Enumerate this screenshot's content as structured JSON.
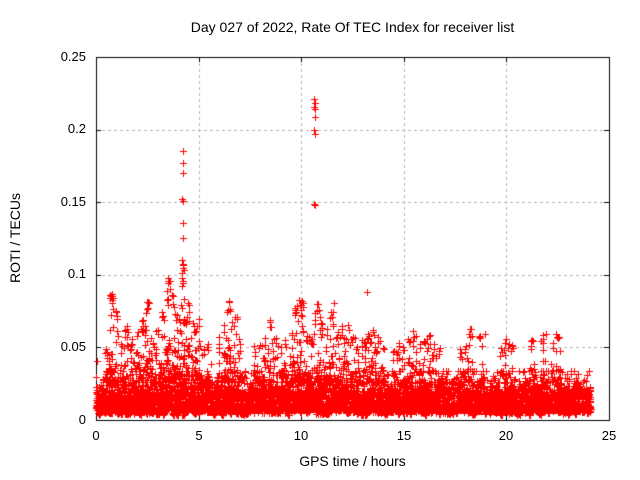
{
  "chart_data": {
    "type": "scatter",
    "title": "Day 027 of 2022, Rate Of TEC Index for receiver list",
    "xlabel": "GPS time / hours",
    "ylabel": "ROTI / TECUs",
    "series_name": "ROTI",
    "xlim": [
      0,
      25
    ],
    "ylim": [
      0,
      0.25
    ],
    "xticks": [
      0,
      5,
      10,
      15,
      20,
      25
    ],
    "yticks": [
      0,
      0.05,
      0.1,
      0.15,
      0.2,
      0.25
    ],
    "xtick_labels": [
      "0",
      "5",
      "10",
      "15",
      "20",
      "25"
    ],
    "ytick_labels": [
      "0",
      "0.05",
      "0.1",
      "0.15",
      "0.2",
      "0.25"
    ],
    "grid": {
      "show": true,
      "color": "#b4b4b4",
      "dash": [
        3,
        3
      ]
    },
    "marker": {
      "shape": "plus",
      "size": 7,
      "color": "#ff0000"
    },
    "axes_color": "#000000",
    "text_color": "#000000",
    "background": "#ffffff",
    "legend": "none",
    "seed": 20220127,
    "data_x_start": 0.0,
    "data_x_end": 24.05,
    "envelope": [
      [
        0.0,
        0.041
      ],
      [
        0.25,
        0.043
      ],
      [
        0.5,
        0.05
      ],
      [
        0.75,
        0.088
      ],
      [
        1.0,
        0.076
      ],
      [
        1.25,
        0.053
      ],
      [
        1.5,
        0.066
      ],
      [
        1.75,
        0.056
      ],
      [
        2.0,
        0.061
      ],
      [
        2.25,
        0.069
      ],
      [
        2.5,
        0.082
      ],
      [
        2.75,
        0.058
      ],
      [
        3.0,
        0.063
      ],
      [
        3.25,
        0.076
      ],
      [
        3.5,
        0.099
      ],
      [
        3.75,
        0.087
      ],
      [
        4.0,
        0.073
      ],
      [
        4.25,
        0.108
      ],
      [
        4.5,
        0.081
      ],
      [
        4.75,
        0.068
      ],
      [
        5.0,
        0.071
      ],
      [
        5.25,
        0.049
      ],
      [
        5.5,
        0.053
      ],
      [
        5.75,
        0.048
      ],
      [
        6.0,
        0.057
      ],
      [
        6.25,
        0.067
      ],
      [
        6.5,
        0.082
      ],
      [
        6.75,
        0.071
      ],
      [
        7.0,
        0.056
      ],
      [
        7.25,
        0.043
      ],
      [
        7.5,
        0.047
      ],
      [
        7.75,
        0.051
      ],
      [
        8.0,
        0.053
      ],
      [
        8.25,
        0.057
      ],
      [
        8.5,
        0.069
      ],
      [
        8.75,
        0.057
      ],
      [
        9.0,
        0.051
      ],
      [
        9.25,
        0.055
      ],
      [
        9.5,
        0.061
      ],
      [
        9.75,
        0.079
      ],
      [
        10.0,
        0.083
      ],
      [
        10.25,
        0.059
      ],
      [
        10.5,
        0.056
      ],
      [
        10.75,
        0.081
      ],
      [
        11.0,
        0.066
      ],
      [
        11.25,
        0.063
      ],
      [
        11.5,
        0.075
      ],
      [
        11.75,
        0.061
      ],
      [
        12.0,
        0.066
      ],
      [
        12.25,
        0.056
      ],
      [
        12.5,
        0.058
      ],
      [
        12.75,
        0.051
      ],
      [
        13.0,
        0.056
      ],
      [
        13.25,
        0.061
      ],
      [
        13.5,
        0.063
      ],
      [
        13.75,
        0.058
      ],
      [
        14.0,
        0.051
      ],
      [
        14.25,
        0.046
      ],
      [
        14.5,
        0.049
      ],
      [
        14.75,
        0.053
      ],
      [
        15.0,
        0.051
      ],
      [
        15.25,
        0.056
      ],
      [
        15.5,
        0.063
      ],
      [
        15.75,
        0.053
      ],
      [
        16.0,
        0.056
      ],
      [
        16.25,
        0.06
      ],
      [
        16.5,
        0.054
      ],
      [
        16.75,
        0.05
      ],
      [
        17.0,
        0.046
      ],
      [
        17.25,
        0.044
      ],
      [
        17.5,
        0.047
      ],
      [
        17.75,
        0.049
      ],
      [
        18.0,
        0.052
      ],
      [
        18.25,
        0.063
      ],
      [
        18.5,
        0.046
      ],
      [
        18.75,
        0.059
      ],
      [
        19.0,
        0.048
      ],
      [
        19.25,
        0.047
      ],
      [
        19.5,
        0.044
      ],
      [
        19.75,
        0.05
      ],
      [
        20.0,
        0.057
      ],
      [
        20.25,
        0.053
      ],
      [
        20.5,
        0.042
      ],
      [
        20.75,
        0.045
      ],
      [
        21.0,
        0.047
      ],
      [
        21.25,
        0.055
      ],
      [
        21.5,
        0.048
      ],
      [
        21.75,
        0.059
      ],
      [
        22.0,
        0.048
      ],
      [
        22.25,
        0.053
      ],
      [
        22.5,
        0.059
      ],
      [
        22.75,
        0.046
      ],
      [
        23.0,
        0.042
      ],
      [
        23.25,
        0.04
      ],
      [
        23.5,
        0.038
      ],
      [
        23.75,
        0.036
      ],
      [
        24.0,
        0.028
      ]
    ],
    "outliers": [
      [
        0.05,
        0.0405
      ],
      [
        0.78,
        0.087
      ],
      [
        0.8,
        0.0855
      ],
      [
        0.82,
        0.084
      ],
      [
        0.79,
        0.0805
      ],
      [
        0.85,
        0.0765
      ],
      [
        2.45,
        0.0735
      ],
      [
        2.5,
        0.081
      ],
      [
        2.55,
        0.077
      ],
      [
        3.45,
        0.0885
      ],
      [
        3.5,
        0.098
      ],
      [
        3.55,
        0.096
      ],
      [
        3.6,
        0.09
      ],
      [
        3.7,
        0.086
      ],
      [
        4.18,
        0.098
      ],
      [
        4.19,
        0.0925
      ],
      [
        4.2,
        0.11
      ],
      [
        4.21,
        0.152
      ],
      [
        4.22,
        0.185
      ],
      [
        4.22,
        0.177
      ],
      [
        4.22,
        0.136
      ],
      [
        4.23,
        0.17
      ],
      [
        4.23,
        0.1255
      ],
      [
        4.24,
        0.151
      ],
      [
        4.25,
        0.105
      ],
      [
        4.26,
        0.0955
      ],
      [
        4.3,
        0.103
      ],
      [
        6.5,
        0.081
      ],
      [
        6.55,
        0.0765
      ],
      [
        8.5,
        0.0687
      ],
      [
        8.55,
        0.064
      ],
      [
        9.9,
        0.0824
      ],
      [
        9.95,
        0.079
      ],
      [
        10.0,
        0.0755
      ],
      [
        10.05,
        0.0715
      ],
      [
        10.62,
        0.149
      ],
      [
        10.63,
        0.221
      ],
      [
        10.63,
        0.2
      ],
      [
        10.64,
        0.2155
      ],
      [
        10.65,
        0.2185
      ],
      [
        10.65,
        0.2085
      ],
      [
        10.66,
        0.214
      ],
      [
        10.66,
        0.197
      ],
      [
        10.67,
        0.218
      ],
      [
        10.68,
        0.148
      ],
      [
        10.8,
        0.08
      ],
      [
        10.85,
        0.0755
      ],
      [
        10.9,
        0.071
      ],
      [
        10.95,
        0.0665
      ],
      [
        11.0,
        0.0635
      ],
      [
        11.62,
        0.0803
      ],
      [
        12.3,
        0.0655
      ],
      [
        12.35,
        0.062
      ],
      [
        13.21,
        0.088
      ],
      [
        18.24,
        0.063
      ],
      [
        18.95,
        0.0595
      ],
      [
        21.26,
        0.0549
      ],
      [
        21.92,
        0.0595
      ],
      [
        22.4,
        0.059
      ],
      [
        22.55,
        0.057
      ]
    ],
    "base_cloud": {
      "bin_width": 0.1,
      "x_start": 0.0,
      "x_end": 24.05,
      "points_per_bin": 20,
      "mid_points": 7,
      "y_floor": 0.004,
      "core_spread": 0.02
    }
  }
}
